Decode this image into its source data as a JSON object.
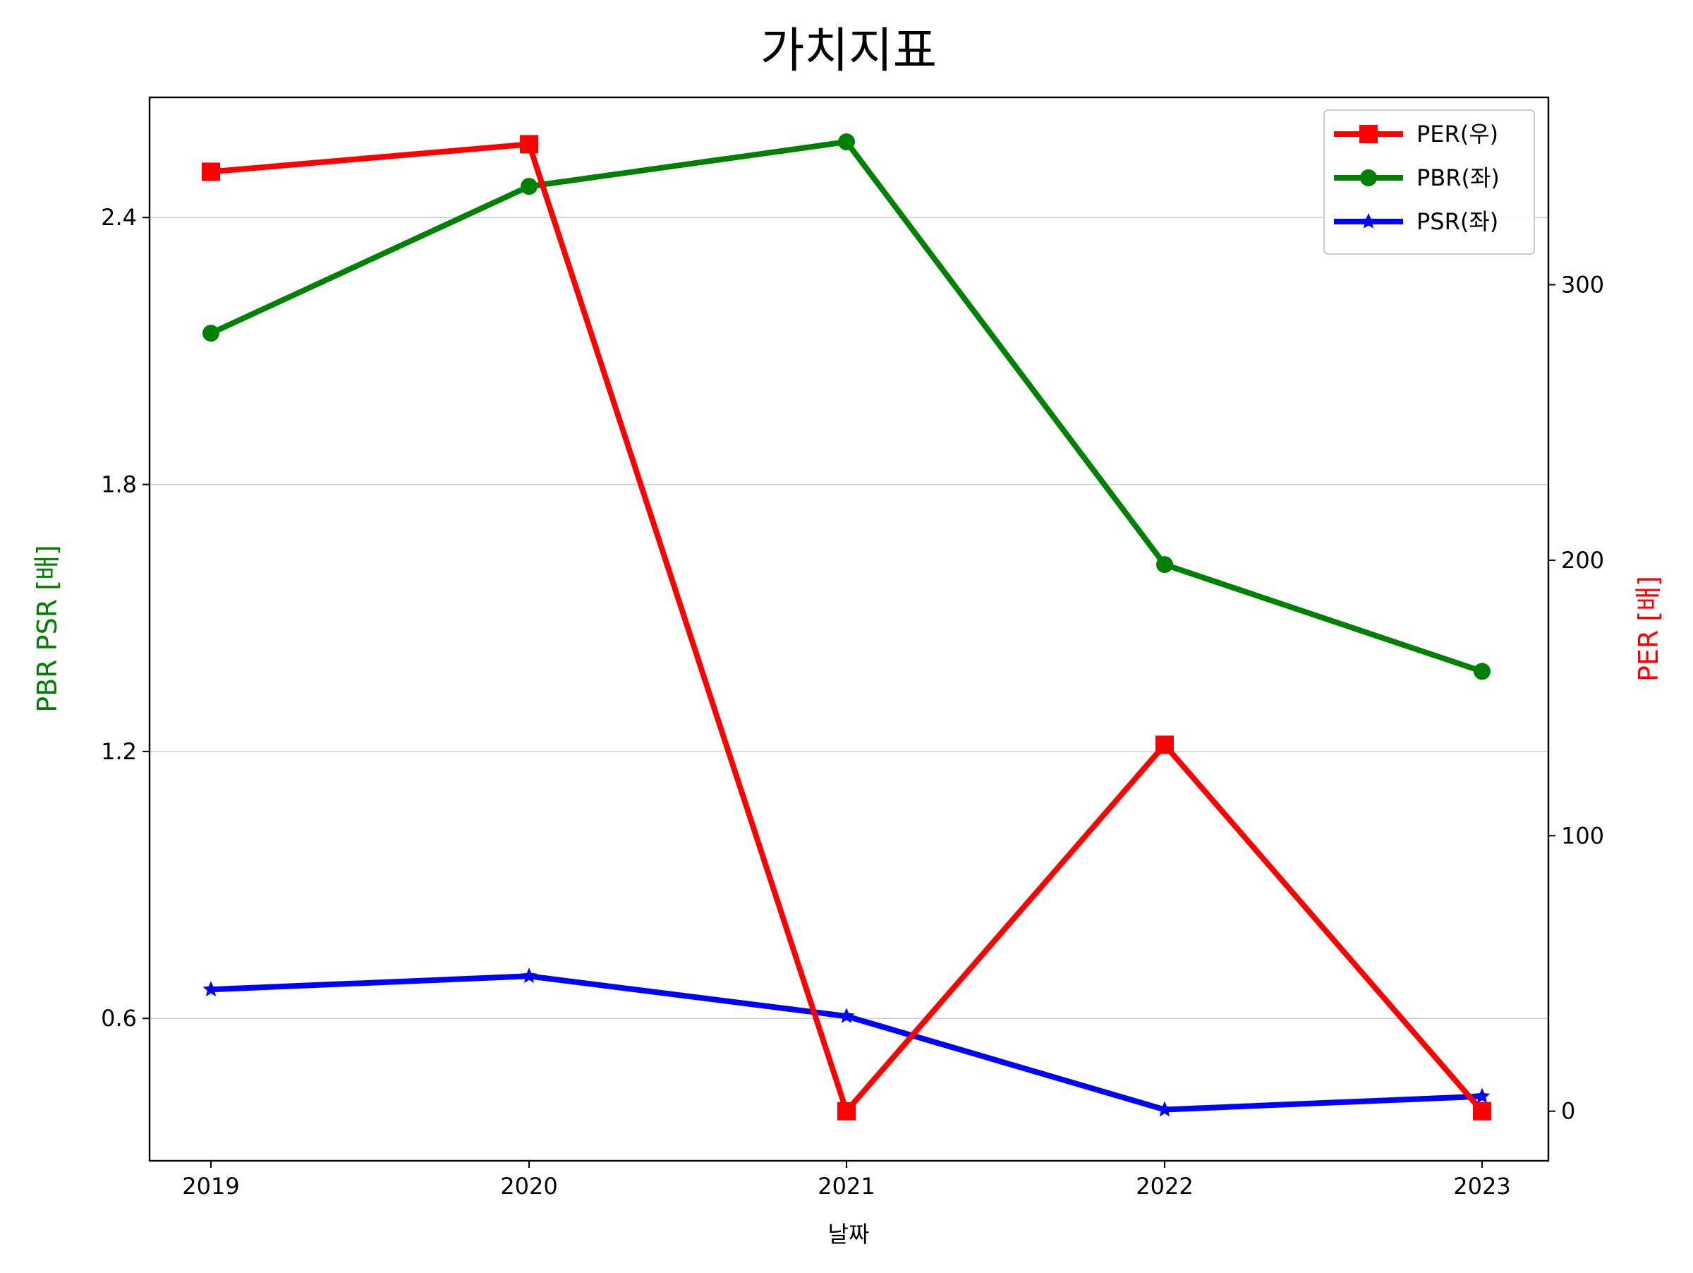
{
  "chart_data": {
    "type": "line",
    "title": "가치지표",
    "xlabel": "날짜",
    "ylabel_left": "PBR PSR [배]",
    "ylabel_right": "PER [배]",
    "categories": [
      "2019",
      "2020",
      "2021",
      "2022",
      "2023"
    ],
    "y_left": {
      "lim": [
        0.28,
        2.67
      ],
      "ticks": [
        0.6,
        1.2,
        1.8,
        2.4
      ],
      "tick_labels": [
        "0.6",
        "1.2",
        "1.8",
        "2.4"
      ]
    },
    "y_right": {
      "lim": [
        -18,
        368
      ],
      "ticks": [
        0,
        100,
        200,
        300
      ],
      "tick_labels": [
        "0",
        "100",
        "200",
        "300"
      ]
    },
    "grid": "horizontal-left-axis",
    "legend_position": "top-right",
    "series": [
      {
        "name": "PER(우)",
        "axis": "right",
        "color": "#ff0000",
        "marker": "square",
        "values": [
          341,
          351,
          0,
          133,
          0
        ]
      },
      {
        "name": "PBR(좌)",
        "axis": "left",
        "color": "#008000",
        "marker": "circle",
        "values": [
          2.14,
          2.47,
          2.57,
          1.62,
          1.38
        ]
      },
      {
        "name": "PSR(좌)",
        "axis": "left",
        "color": "#0000ff",
        "marker": "star",
        "values": [
          0.665,
          0.695,
          0.605,
          0.395,
          0.425
        ]
      }
    ]
  }
}
